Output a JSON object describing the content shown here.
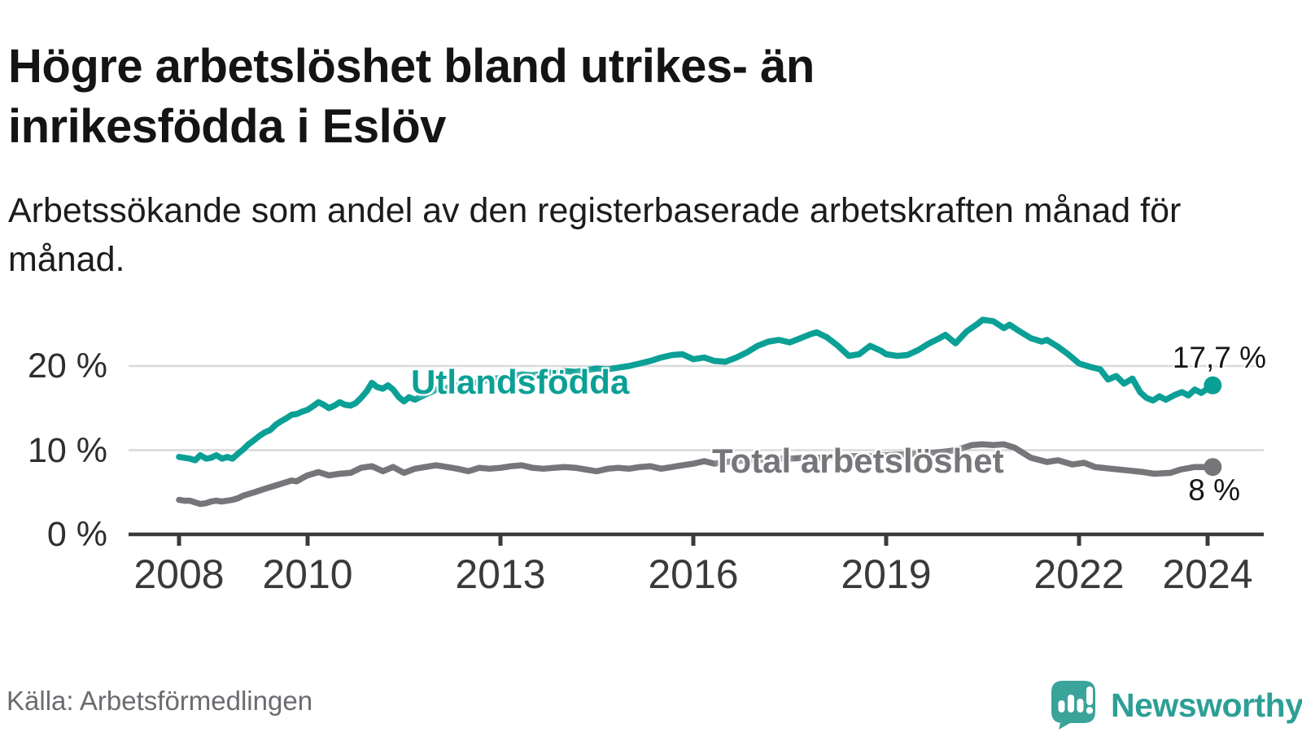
{
  "header": {
    "title": "Högre arbetslöshet bland utrikes- än inrikesfödda i Eslöv",
    "subtitle": "Arbetssökande som andel av den registerbaserade arbetskraften månad för månad."
  },
  "footer": {
    "source": "Källa: Arbetsförmedlingen",
    "brand": "Newsworthy"
  },
  "colors": {
    "foreign_line": "#0ba096",
    "total_line": "#76767a",
    "grid": "#d9d9d9",
    "axis": "#3a3a3c",
    "title_text": "#141414",
    "muted_text": "#6b6b70",
    "brand_teal": "#3aa39a"
  },
  "chart_data": {
    "type": "line",
    "title": "Högre arbetslöshet bland utrikes- än inrikesfödda i Eslöv",
    "subtitle": "Arbetssökande som andel av den registerbaserade arbetskraften månad för månad.",
    "unit": "%",
    "grid": "horizontal",
    "legend_position": "inline-labels",
    "x_axis": {
      "ticks": [
        2008,
        2010,
        2013,
        2016,
        2019,
        2022,
        2024
      ],
      "range_start": 2008.0,
      "range_end": 2024.08
    },
    "y_axis": {
      "ticks": [
        0,
        10,
        20
      ],
      "tick_suffix": " %",
      "max_plotted": 25.5
    },
    "series": [
      {
        "name": "Utlandsfödda",
        "color": "#0ba096",
        "end_label": "17,7 %",
        "end_value": 17.7,
        "points": [
          [
            2008.0,
            9.2
          ],
          [
            2008.08,
            9.1
          ],
          [
            2008.17,
            9.0
          ],
          [
            2008.25,
            8.8
          ],
          [
            2008.33,
            9.4
          ],
          [
            2008.42,
            9.0
          ],
          [
            2008.5,
            9.1
          ],
          [
            2008.58,
            9.4
          ],
          [
            2008.67,
            9.0
          ],
          [
            2008.75,
            9.2
          ],
          [
            2008.83,
            9.0
          ],
          [
            2008.92,
            9.6
          ],
          [
            2009.0,
            10.1
          ],
          [
            2009.08,
            10.7
          ],
          [
            2009.17,
            11.2
          ],
          [
            2009.25,
            11.7
          ],
          [
            2009.33,
            12.1
          ],
          [
            2009.42,
            12.4
          ],
          [
            2009.5,
            13.0
          ],
          [
            2009.58,
            13.4
          ],
          [
            2009.67,
            13.8
          ],
          [
            2009.75,
            14.2
          ],
          [
            2009.83,
            14.3
          ],
          [
            2009.92,
            14.6
          ],
          [
            2010.0,
            14.8
          ],
          [
            2010.08,
            15.2
          ],
          [
            2010.17,
            15.7
          ],
          [
            2010.25,
            15.4
          ],
          [
            2010.33,
            15.0
          ],
          [
            2010.42,
            15.3
          ],
          [
            2010.5,
            15.7
          ],
          [
            2010.58,
            15.4
          ],
          [
            2010.67,
            15.3
          ],
          [
            2010.75,
            15.6
          ],
          [
            2010.83,
            16.2
          ],
          [
            2010.92,
            17.0
          ],
          [
            2011.0,
            18.0
          ],
          [
            2011.08,
            17.5
          ],
          [
            2011.17,
            17.3
          ],
          [
            2011.25,
            17.7
          ],
          [
            2011.33,
            17.2
          ],
          [
            2011.42,
            16.3
          ],
          [
            2011.5,
            15.8
          ],
          [
            2011.58,
            16.3
          ],
          [
            2011.67,
            16.0
          ],
          [
            2011.75,
            16.3
          ],
          [
            2011.83,
            16.6
          ],
          [
            2011.92,
            16.9
          ],
          [
            2012.0,
            17.2
          ],
          [
            2012.17,
            17.4
          ],
          [
            2012.33,
            17.7
          ],
          [
            2012.5,
            17.9
          ],
          [
            2012.67,
            18.1
          ],
          [
            2012.83,
            18.4
          ],
          [
            2013.0,
            18.6
          ],
          [
            2013.17,
            18.8
          ],
          [
            2013.33,
            19.0
          ],
          [
            2013.5,
            18.9
          ],
          [
            2013.67,
            19.1
          ],
          [
            2013.83,
            19.3
          ],
          [
            2014.0,
            19.4
          ],
          [
            2014.17,
            19.3
          ],
          [
            2014.33,
            19.5
          ],
          [
            2014.5,
            19.7
          ],
          [
            2014.67,
            19.6
          ],
          [
            2014.83,
            19.8
          ],
          [
            2015.0,
            20.0
          ],
          [
            2015.17,
            20.3
          ],
          [
            2015.33,
            20.6
          ],
          [
            2015.5,
            21.0
          ],
          [
            2015.67,
            21.3
          ],
          [
            2015.83,
            21.4
          ],
          [
            2016.0,
            20.8
          ],
          [
            2016.17,
            21.0
          ],
          [
            2016.33,
            20.6
          ],
          [
            2016.5,
            20.5
          ],
          [
            2016.67,
            21.0
          ],
          [
            2016.83,
            21.6
          ],
          [
            2017.0,
            22.4
          ],
          [
            2017.17,
            22.9
          ],
          [
            2017.33,
            23.1
          ],
          [
            2017.5,
            22.8
          ],
          [
            2017.67,
            23.3
          ],
          [
            2017.83,
            23.8
          ],
          [
            2017.92,
            24.0
          ],
          [
            2018.08,
            23.4
          ],
          [
            2018.25,
            22.4
          ],
          [
            2018.42,
            21.2
          ],
          [
            2018.58,
            21.4
          ],
          [
            2018.75,
            22.4
          ],
          [
            2018.92,
            21.8
          ],
          [
            2019.0,
            21.4
          ],
          [
            2019.17,
            21.2
          ],
          [
            2019.33,
            21.3
          ],
          [
            2019.5,
            21.9
          ],
          [
            2019.67,
            22.7
          ],
          [
            2019.83,
            23.3
          ],
          [
            2019.92,
            23.7
          ],
          [
            2020.08,
            22.7
          ],
          [
            2020.25,
            24.1
          ],
          [
            2020.42,
            25.0
          ],
          [
            2020.5,
            25.5
          ],
          [
            2020.67,
            25.3
          ],
          [
            2020.83,
            24.5
          ],
          [
            2020.92,
            24.9
          ],
          [
            2021.08,
            24.1
          ],
          [
            2021.25,
            23.3
          ],
          [
            2021.42,
            22.9
          ],
          [
            2021.5,
            23.1
          ],
          [
            2021.67,
            22.3
          ],
          [
            2021.83,
            21.4
          ],
          [
            2022.0,
            20.3
          ],
          [
            2022.17,
            19.9
          ],
          [
            2022.33,
            19.6
          ],
          [
            2022.45,
            18.4
          ],
          [
            2022.58,
            18.8
          ],
          [
            2022.7,
            17.9
          ],
          [
            2022.83,
            18.5
          ],
          [
            2022.95,
            16.9
          ],
          [
            2023.05,
            16.2
          ],
          [
            2023.15,
            15.9
          ],
          [
            2023.25,
            16.4
          ],
          [
            2023.35,
            16.0
          ],
          [
            2023.5,
            16.6
          ],
          [
            2023.6,
            16.9
          ],
          [
            2023.7,
            16.5
          ],
          [
            2023.8,
            17.2
          ],
          [
            2023.9,
            16.8
          ],
          [
            2024.0,
            17.3
          ],
          [
            2024.08,
            17.7
          ]
        ]
      },
      {
        "name": "Total arbetslöshet",
        "color": "#76767a",
        "end_label": "8 %",
        "end_value": 8.0,
        "points": [
          [
            2008.0,
            4.1
          ],
          [
            2008.08,
            4.0
          ],
          [
            2008.17,
            4.0
          ],
          [
            2008.25,
            3.8
          ],
          [
            2008.33,
            3.6
          ],
          [
            2008.42,
            3.7
          ],
          [
            2008.5,
            3.9
          ],
          [
            2008.58,
            4.0
          ],
          [
            2008.67,
            3.9
          ],
          [
            2008.75,
            4.0
          ],
          [
            2008.83,
            4.1
          ],
          [
            2008.92,
            4.3
          ],
          [
            2009.0,
            4.6
          ],
          [
            2009.17,
            5.0
          ],
          [
            2009.33,
            5.4
          ],
          [
            2009.5,
            5.8
          ],
          [
            2009.67,
            6.2
          ],
          [
            2009.75,
            6.4
          ],
          [
            2009.83,
            6.3
          ],
          [
            2009.92,
            6.7
          ],
          [
            2010.0,
            7.0
          ],
          [
            2010.17,
            7.4
          ],
          [
            2010.33,
            7.0
          ],
          [
            2010.5,
            7.2
          ],
          [
            2010.67,
            7.3
          ],
          [
            2010.83,
            7.9
          ],
          [
            2011.0,
            8.1
          ],
          [
            2011.17,
            7.5
          ],
          [
            2011.33,
            8.0
          ],
          [
            2011.5,
            7.3
          ],
          [
            2011.67,
            7.8
          ],
          [
            2011.83,
            8.0
          ],
          [
            2012.0,
            8.2
          ],
          [
            2012.17,
            8.0
          ],
          [
            2012.33,
            7.8
          ],
          [
            2012.5,
            7.5
          ],
          [
            2012.67,
            7.9
          ],
          [
            2012.83,
            7.8
          ],
          [
            2013.0,
            7.9
          ],
          [
            2013.17,
            8.1
          ],
          [
            2013.33,
            8.2
          ],
          [
            2013.5,
            7.9
          ],
          [
            2013.67,
            7.8
          ],
          [
            2013.83,
            7.9
          ],
          [
            2014.0,
            8.0
          ],
          [
            2014.17,
            7.9
          ],
          [
            2014.33,
            7.7
          ],
          [
            2014.5,
            7.5
          ],
          [
            2014.67,
            7.8
          ],
          [
            2014.83,
            7.9
          ],
          [
            2015.0,
            7.8
          ],
          [
            2015.17,
            8.0
          ],
          [
            2015.33,
            8.1
          ],
          [
            2015.5,
            7.8
          ],
          [
            2015.67,
            8.0
          ],
          [
            2015.83,
            8.2
          ],
          [
            2016.0,
            8.4
          ],
          [
            2016.17,
            8.7
          ],
          [
            2016.33,
            8.4
          ],
          [
            2016.5,
            8.6
          ],
          [
            2016.67,
            8.7
          ],
          [
            2016.83,
            8.8
          ],
          [
            2017.0,
            8.8
          ],
          [
            2017.25,
            9.0
          ],
          [
            2017.5,
            9.0
          ],
          [
            2017.75,
            9.1
          ],
          [
            2018.0,
            9.1
          ],
          [
            2018.25,
            9.2
          ],
          [
            2018.5,
            9.3
          ],
          [
            2018.75,
            9.3
          ],
          [
            2019.0,
            9.4
          ],
          [
            2019.25,
            9.5
          ],
          [
            2019.5,
            9.6
          ],
          [
            2019.75,
            9.7
          ],
          [
            2020.0,
            9.9
          ],
          [
            2020.17,
            10.2
          ],
          [
            2020.33,
            10.6
          ],
          [
            2020.5,
            10.7
          ],
          [
            2020.67,
            10.6
          ],
          [
            2020.83,
            10.7
          ],
          [
            2021.0,
            10.3
          ],
          [
            2021.08,
            9.9
          ],
          [
            2021.25,
            9.1
          ],
          [
            2021.5,
            8.6
          ],
          [
            2021.67,
            8.8
          ],
          [
            2021.9,
            8.3
          ],
          [
            2022.08,
            8.5
          ],
          [
            2022.25,
            8.0
          ],
          [
            2022.5,
            7.8
          ],
          [
            2022.75,
            7.6
          ],
          [
            2023.0,
            7.4
          ],
          [
            2023.17,
            7.2
          ],
          [
            2023.42,
            7.3
          ],
          [
            2023.58,
            7.7
          ],
          [
            2023.8,
            8.0
          ],
          [
            2024.08,
            8.0
          ]
        ]
      }
    ]
  }
}
